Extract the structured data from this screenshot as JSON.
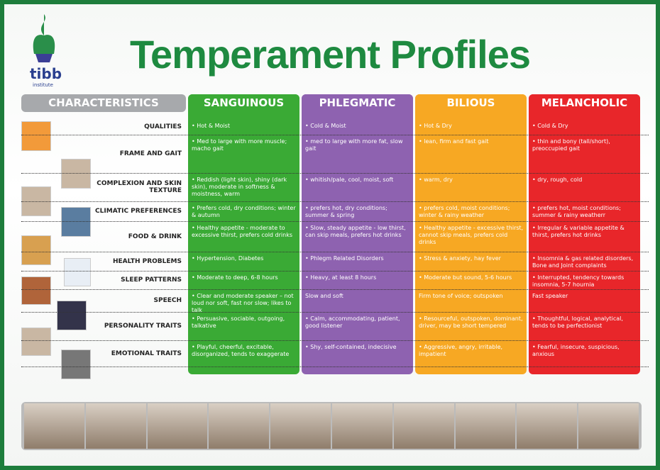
{
  "header": {
    "logo": "tibb",
    "logo_sub": "institute",
    "title": "Temperament Profiles"
  },
  "table": {
    "header": "CHARACTERISTICS",
    "columns": [
      "SANGUINOUS",
      "PHLEGMATIC",
      "BILIOUS",
      "MELANCHOLIC"
    ],
    "rows": [
      {
        "label": "QUALITIES",
        "cells": [
          "• Hot & Moist",
          "• Cold & Moist",
          "• Hot & Dry",
          "• Cold & Dry"
        ]
      },
      {
        "label": "FRAME AND GAIT",
        "cells": [
          "• Med to large with more muscle; macho gait",
          "• med to large with more fat, slow gait",
          "• lean, firm and fast gait",
          "• thin and bony (tall/short), preoccupied gait"
        ]
      },
      {
        "label": "COMPLEXION AND SKIN TEXTURE",
        "cells": [
          "• Reddish (light skin), shiny (dark skin), moderate in softness & moistness, warm",
          "• whitish/pale, cool, moist, soft",
          "• warm, dry",
          "• dry, rough, cold"
        ]
      },
      {
        "label": "CLIMATIC PREFERENCES",
        "cells": [
          "• Prefers cold, dry conditions; winter & autumn",
          "• prefers hot, dry conditions; summer & spring",
          "• prefers cold, moist conditions; winter & rainy weather",
          "• prefers hot, moist conditions; summer & rainy weatherr"
        ]
      },
      {
        "label": "FOOD & DRINK",
        "cells": [
          "• Healthy appetite - moderate to excessive thirst, prefers cold drinks",
          "• Slow, steady appetite - low thirst, can skip meals, prefers hot drinks",
          "• Healthy appetite - excessive thirst, cannot skip meals, prefers cold drinks",
          "• Irregular & variable appetite & thirst, prefers hot drinks"
        ]
      },
      {
        "label": "HEALTH PROBLEMS",
        "cells": [
          "• Hypertension, Diabetes",
          "• Phlegm Related Disorders",
          "• Stress & anxiety, hay fever",
          "• Insomnia & gas related disorders, Bone and Joint complaints"
        ]
      },
      {
        "label": "SLEEP PATTERNS",
        "cells": [
          "• Moderate to deep, 6-8 hours",
          "• Heavy, at least 8 hours",
          "• Moderate but sound, 5-6 hours",
          "• Interrupted, tendency towards insomnia, 5-7 hournia"
        ]
      },
      {
        "label": "SPEECH",
        "cells": [
          "• Clear and moderate speaker – not loud nor soft, fast nor slow; likes to talk",
          "Slow and soft",
          "Firm tone of voice; outspoken",
          "Fast speaker"
        ]
      },
      {
        "label": "PERSONALITY TRAITS",
        "cells": [
          "• Persuasive, sociable, outgoing, talkative",
          "• Calm, accommodating, patient, good listener",
          "• Resourceful, outspoken, dominant, driver, may be short tempered",
          "• Thoughtful, logical, analytical, tends to be perfectionist"
        ]
      },
      {
        "label": "EMOTIONAL TRAITS",
        "cells": [
          "• Playful, cheerful, excitable, disorganized, tends to exaggerate",
          "• Shy, self-contained, indecisive",
          "• Aggressive, angry, irritable, impatient",
          "• Fearful, insecure, suspicious, anxious"
        ]
      }
    ]
  }
}
